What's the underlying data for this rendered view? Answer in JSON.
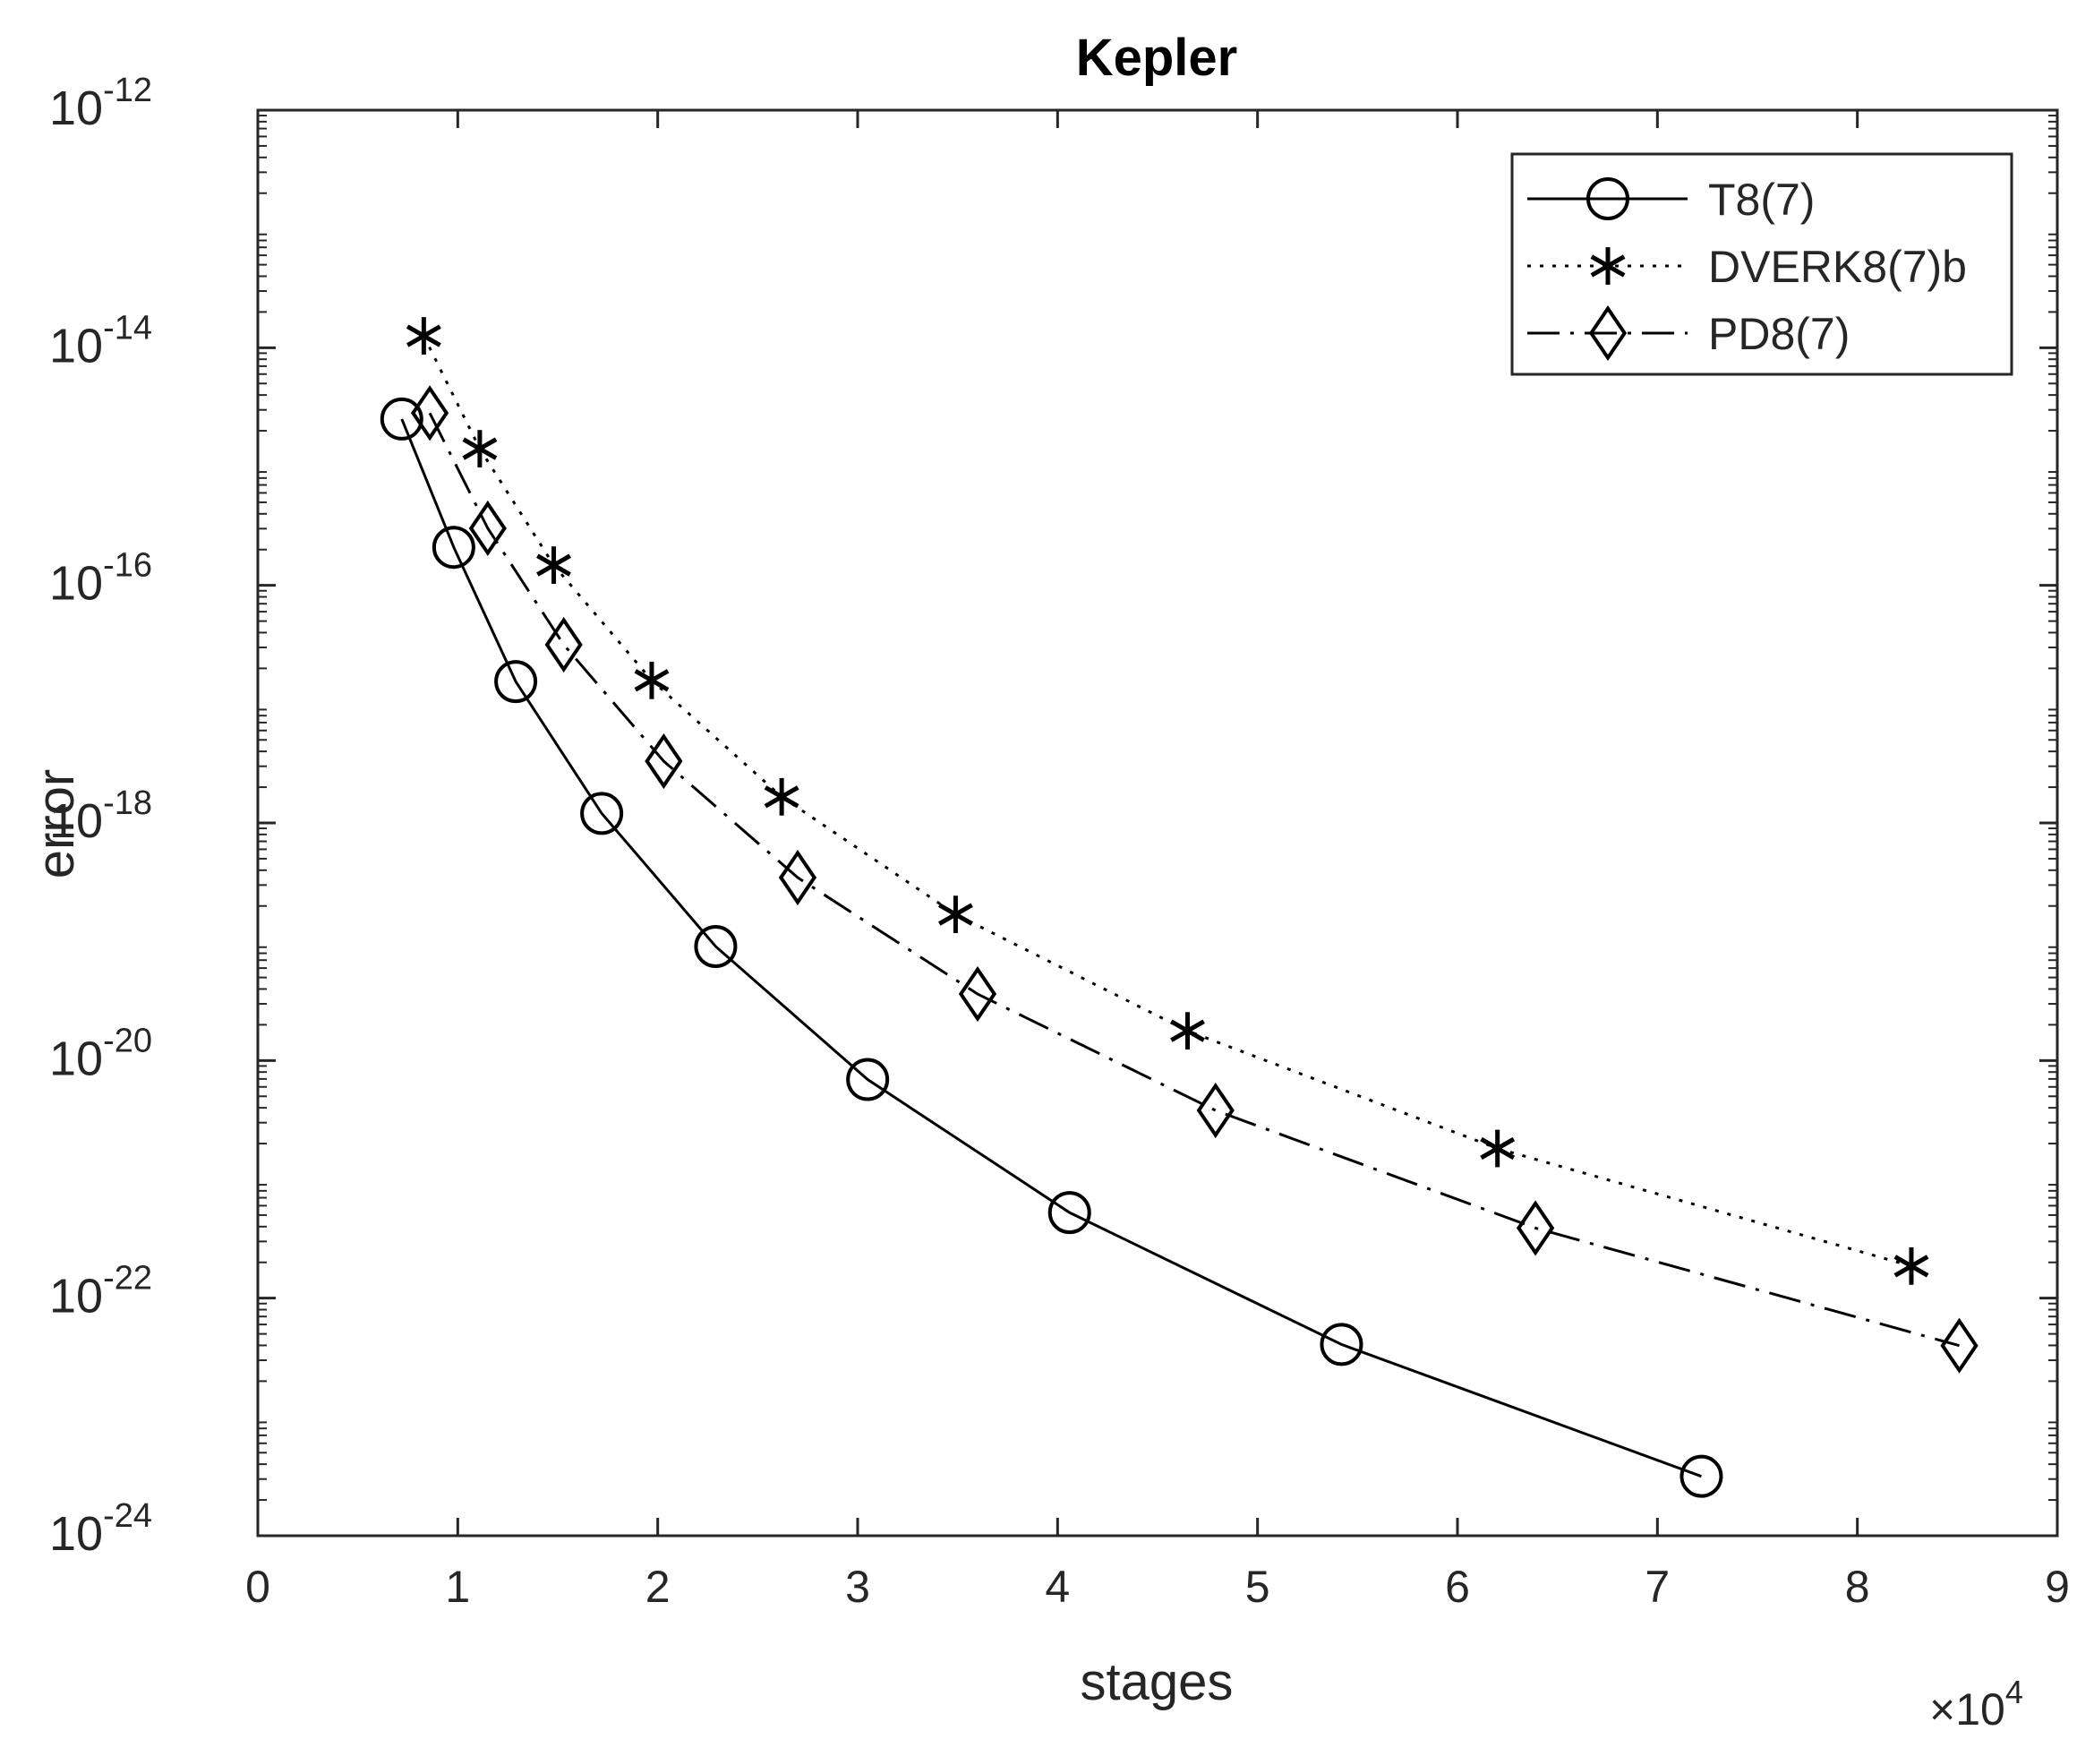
{
  "chart_data": {
    "type": "line",
    "title": "Kepler",
    "xlabel": "stages",
    "ylabel": "error",
    "xscale_label": {
      "base": "×10",
      "exponent": "4"
    },
    "xlim": [
      0,
      9
    ],
    "ylim_log10": [
      -24,
      -12
    ],
    "yscale": "log",
    "x_ticks": [
      {
        "value": 0,
        "label": "0"
      },
      {
        "value": 1,
        "label": "1"
      },
      {
        "value": 2,
        "label": "2"
      },
      {
        "value": 3,
        "label": "3"
      },
      {
        "value": 4,
        "label": "4"
      },
      {
        "value": 5,
        "label": "5"
      },
      {
        "value": 6,
        "label": "6"
      },
      {
        "value": 7,
        "label": "7"
      },
      {
        "value": 8,
        "label": "8"
      },
      {
        "value": 9,
        "label": "9"
      }
    ],
    "y_ticks": [
      {
        "exp": -12,
        "base": "10",
        "sup": "-12"
      },
      {
        "exp": -14,
        "base": "10",
        "sup": "-14"
      },
      {
        "exp": -16,
        "base": "10",
        "sup": "-16"
      },
      {
        "exp": -18,
        "base": "10",
        "sup": "-18"
      },
      {
        "exp": -20,
        "base": "10",
        "sup": "-20"
      },
      {
        "exp": -22,
        "base": "10",
        "sup": "-22"
      },
      {
        "exp": -24,
        "base": "10",
        "sup": "-24"
      }
    ],
    "legend_position": "top-right",
    "series": [
      {
        "name": "T8(7)",
        "marker": "circle",
        "line": "solid",
        "x": [
          0.72,
          0.98,
          1.29,
          1.72,
          2.29,
          3.05,
          4.06,
          5.42,
          7.22
        ],
        "y_log10": [
          -14.6,
          -15.68,
          -16.81,
          -17.92,
          -19.04,
          -20.16,
          -21.28,
          -22.39,
          -23.5
        ]
      },
      {
        "name": "DVERK8(7)b",
        "marker": "asterisk",
        "line": "dotted",
        "x": [
          0.83,
          1.11,
          1.48,
          1.97,
          2.62,
          3.49,
          4.65,
          6.2,
          8.27
        ],
        "y_log10": [
          -13.9,
          -14.85,
          -15.83,
          -16.8,
          -17.78,
          -18.77,
          -19.75,
          -20.74,
          -21.73
        ]
      },
      {
        "name": "PD8(7)",
        "marker": "diamond",
        "line": "dashdot",
        "x": [
          0.86,
          1.15,
          1.53,
          2.03,
          2.7,
          3.6,
          4.79,
          6.39,
          8.51
        ],
        "y_log10": [
          -14.55,
          -15.52,
          -16.5,
          -17.48,
          -18.46,
          -19.44,
          -20.42,
          -21.41,
          -22.4
        ]
      }
    ]
  }
}
